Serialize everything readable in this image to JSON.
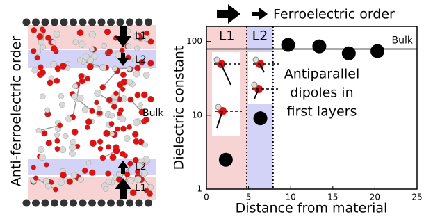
{
  "left_panel": {
    "title": "Anti-ferroelectric order",
    "labels": [
      "L1",
      "L2",
      "Bulk",
      "L2",
      "L1"
    ]
  },
  "chart_data": {
    "type": "scatter",
    "title": "Ferroelectric order",
    "xlabel": "Distance from material",
    "ylabel": "Dielectric constant",
    "x": [
      2.3,
      6.4,
      9.7,
      13.4,
      16.9,
      20.3
    ],
    "values": [
      2.5,
      9.1,
      90,
      86,
      69,
      74
    ],
    "color": "#000000",
    "xlim": [
      0,
      25
    ],
    "ylim": [
      1,
      160
    ],
    "xticks": [
      0,
      5,
      10,
      15,
      20,
      25
    ],
    "yticks": [
      1,
      10,
      100
    ],
    "yscale": "log",
    "regions": [
      {
        "name": "L1",
        "range": [
          0,
          4.8
        ],
        "color": "#f8d3d3"
      },
      {
        "name": "L2",
        "range": [
          4.8,
          7.9
        ],
        "color": "#d2d3f6"
      }
    ],
    "reference_line": {
      "name": "Bulk",
      "value": 79
    },
    "annotation": [
      "Antiparallel",
      "dipoles in",
      "first layers"
    ]
  }
}
